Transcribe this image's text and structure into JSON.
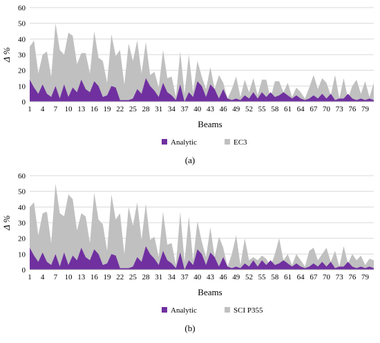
{
  "chart_data": [
    {
      "type": "area",
      "panel": "a",
      "caption": "(a)",
      "xlabel": "Beams",
      "ylabel": "Δ %",
      "ylim": [
        0,
        60
      ],
      "yticks": [
        0,
        10,
        20,
        30,
        40,
        50,
        60
      ],
      "xticks": [
        1,
        4,
        7,
        10,
        13,
        16,
        19,
        22,
        25,
        28,
        31,
        34,
        37,
        40,
        43,
        46,
        49,
        52,
        55,
        58,
        61,
        64,
        67,
        70,
        73,
        76,
        79
      ],
      "x": [
        1,
        2,
        3,
        4,
        5,
        6,
        7,
        8,
        9,
        10,
        11,
        12,
        13,
        14,
        15,
        16,
        17,
        18,
        19,
        20,
        21,
        22,
        23,
        24,
        25,
        26,
        27,
        28,
        29,
        30,
        31,
        32,
        33,
        34,
        35,
        36,
        37,
        38,
        39,
        40,
        41,
        42,
        43,
        44,
        45,
        46,
        47,
        48,
        49,
        50,
        51,
        52,
        53,
        54,
        55,
        56,
        57,
        58,
        59,
        60,
        61,
        62,
        63,
        64,
        65,
        66,
        67,
        68,
        69,
        70,
        71,
        72,
        73,
        74,
        75,
        76,
        77,
        78,
        79,
        80,
        81
      ],
      "grid": true,
      "legend_position": "bottom",
      "series": [
        {
          "name": "EC3",
          "color": "#c0c0c0",
          "values": [
            35,
            39,
            18,
            30,
            32,
            16,
            50,
            33,
            30,
            44,
            42,
            24,
            31,
            31,
            18,
            45,
            28,
            26,
            12,
            43,
            29,
            33,
            11,
            37,
            26,
            39,
            18,
            38,
            17,
            19,
            9,
            33,
            15,
            16,
            3,
            32,
            5,
            30,
            6,
            26,
            16,
            8,
            22,
            8,
            17,
            12,
            2,
            8,
            16,
            3,
            14,
            6,
            15,
            4,
            14,
            14,
            2,
            13,
            13,
            6,
            12,
            3,
            9,
            6,
            2,
            9,
            17,
            8,
            15,
            12,
            4,
            17,
            2,
            15,
            2,
            10,
            14,
            5,
            13,
            3,
            12
          ]
        },
        {
          "name": "Analytic",
          "color": "#7030a0",
          "values": [
            14,
            9,
            5,
            11,
            5,
            3,
            10,
            2,
            11,
            3,
            9,
            6,
            14,
            8,
            6,
            13,
            10,
            3,
            4,
            10,
            9,
            1,
            1,
            1,
            2,
            8,
            5,
            15,
            10,
            7,
            3,
            12,
            6,
            4,
            1,
            11,
            0,
            6,
            3,
            13,
            10,
            3,
            11,
            8,
            2,
            8,
            2,
            1,
            2,
            1,
            4,
            2,
            6,
            2,
            6,
            3,
            6,
            3,
            4,
            6,
            4,
            2,
            4,
            2,
            1,
            2,
            4,
            2,
            5,
            2,
            5,
            1,
            2,
            2,
            5,
            2,
            1,
            2,
            1,
            2,
            1
          ]
        }
      ]
    },
    {
      "type": "area",
      "panel": "b",
      "caption": "(b)",
      "xlabel": "Beams",
      "ylabel": "Δ %",
      "ylim": [
        0,
        60
      ],
      "yticks": [
        0,
        10,
        20,
        30,
        40,
        50,
        60
      ],
      "xticks": [
        1,
        4,
        7,
        10,
        13,
        16,
        19,
        22,
        25,
        28,
        31,
        34,
        37,
        40,
        43,
        46,
        49,
        52,
        55,
        58,
        61,
        64,
        67,
        70,
        73,
        76,
        79
      ],
      "x": [
        1,
        2,
        3,
        4,
        5,
        6,
        7,
        8,
        9,
        10,
        11,
        12,
        13,
        14,
        15,
        16,
        17,
        18,
        19,
        20,
        21,
        22,
        23,
        24,
        25,
        26,
        27,
        28,
        29,
        30,
        31,
        32,
        33,
        34,
        35,
        36,
        37,
        38,
        39,
        40,
        41,
        42,
        43,
        44,
        45,
        46,
        47,
        48,
        49,
        50,
        51,
        52,
        53,
        54,
        55,
        56,
        57,
        58,
        59,
        60,
        61,
        62,
        63,
        64,
        65,
        66,
        67,
        68,
        69,
        70,
        71,
        72,
        73,
        74,
        75,
        76,
        77,
        78,
        79,
        80,
        81
      ],
      "grid": true,
      "legend_position": "bottom",
      "series": [
        {
          "name": "SCI P355",
          "color": "#c0c0c0",
          "values": [
            40,
            43,
            22,
            36,
            37,
            17,
            55,
            36,
            34,
            48,
            45,
            25,
            36,
            34,
            17,
            49,
            32,
            29,
            12,
            48,
            32,
            36,
            10,
            40,
            28,
            43,
            19,
            42,
            19,
            21,
            8,
            37,
            16,
            17,
            3,
            37,
            5,
            34,
            6,
            31,
            18,
            8,
            27,
            8,
            21,
            14,
            2,
            10,
            22,
            3,
            20,
            6,
            8,
            6,
            9,
            7,
            2,
            10,
            20,
            6,
            10,
            3,
            10,
            6,
            2,
            12,
            14,
            6,
            10,
            14,
            5,
            12,
            2,
            15,
            4,
            10,
            6,
            9,
            3,
            7,
            6
          ]
        },
        {
          "name": "Analytic",
          "color": "#7030a0",
          "values": [
            14,
            9,
            5,
            11,
            5,
            3,
            10,
            2,
            11,
            3,
            9,
            6,
            14,
            8,
            6,
            13,
            10,
            3,
            4,
            10,
            9,
            1,
            1,
            1,
            2,
            8,
            5,
            15,
            10,
            7,
            3,
            12,
            6,
            4,
            1,
            11,
            0,
            6,
            3,
            13,
            10,
            3,
            11,
            8,
            2,
            8,
            2,
            1,
            2,
            1,
            4,
            2,
            6,
            2,
            6,
            3,
            6,
            3,
            4,
            6,
            4,
            2,
            4,
            2,
            1,
            2,
            4,
            2,
            5,
            2,
            5,
            1,
            2,
            2,
            5,
            2,
            1,
            2,
            1,
            2,
            1
          ]
        }
      ]
    }
  ]
}
